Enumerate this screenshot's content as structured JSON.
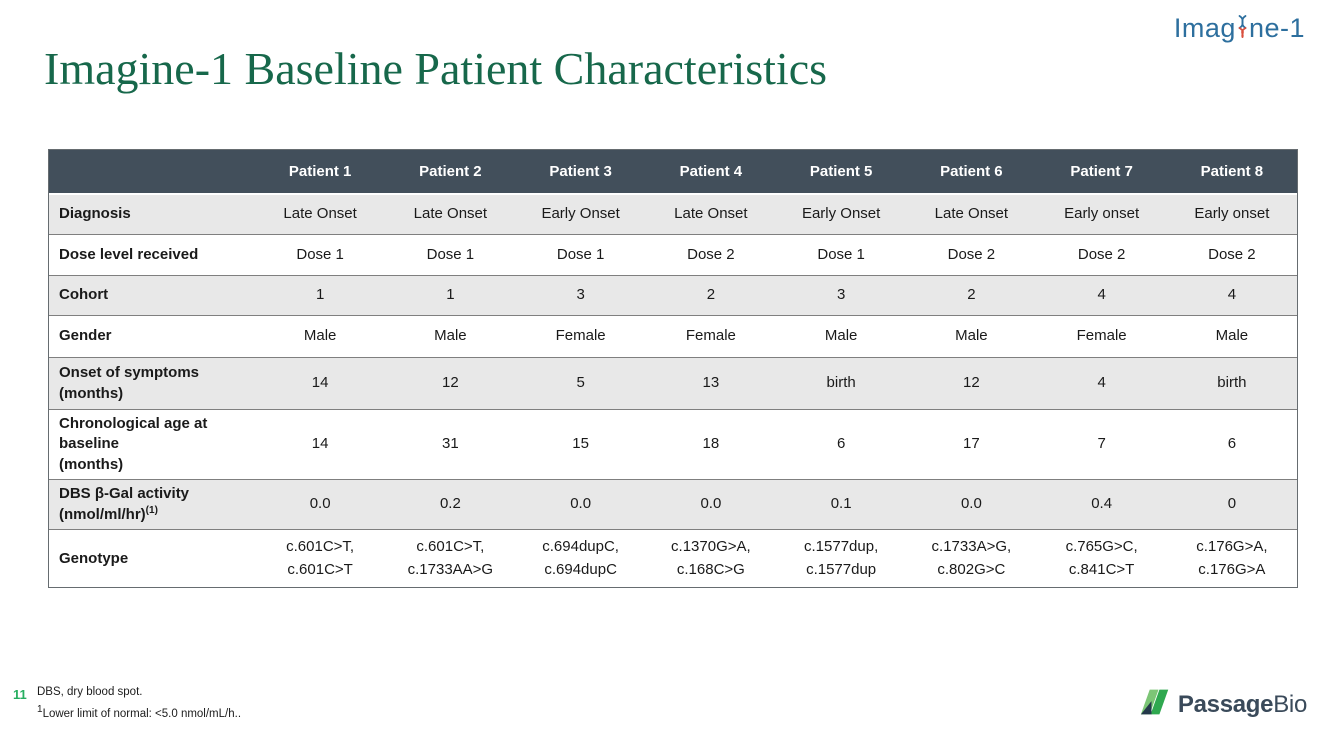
{
  "colors": {
    "title_green": "#17684B",
    "header_bg": "#424F5B",
    "row_gray": "#E8E8E8",
    "logo_blue": "#2D6F9E",
    "dna_red": "#D94F3D",
    "page_num_green": "#27AE60",
    "passage_dark": "#3A4A5A",
    "passage_green_light": "#7CC576",
    "passage_green_dark": "#2FA84F",
    "passage_navy": "#24384A"
  },
  "top_logo": {
    "prefix": "Imag",
    "suffix": "ne-1",
    "dna_icon": "dna-helix-icon"
  },
  "title": "Imagine-1 Baseline Patient Characteristics",
  "table": {
    "columns": [
      "",
      "Patient 1",
      "Patient 2",
      "Patient 3",
      "Patient 4",
      "Patient 5",
      "Patient 6",
      "Patient 7",
      "Patient 8"
    ],
    "rows": [
      {
        "label_lines": [
          "Diagnosis"
        ],
        "shaded": true,
        "values": [
          "Late Onset",
          "Late Onset",
          "Early Onset",
          "Late Onset",
          "Early Onset",
          "Late Onset",
          "Early onset",
          "Early onset"
        ]
      },
      {
        "label_lines": [
          "Dose level received"
        ],
        "shaded": false,
        "values": [
          "Dose 1",
          "Dose 1",
          "Dose 1",
          "Dose 2",
          "Dose 1",
          "Dose 2",
          "Dose 2",
          "Dose 2"
        ]
      },
      {
        "label_lines": [
          "Cohort"
        ],
        "shaded": true,
        "values": [
          "1",
          "1",
          "3",
          "2",
          "3",
          "2",
          "4",
          "4"
        ]
      },
      {
        "label_lines": [
          "Gender"
        ],
        "shaded": false,
        "values": [
          "Male",
          "Male",
          "Female",
          "Female",
          "Male",
          "Male",
          "Female",
          "Male"
        ]
      },
      {
        "label_lines": [
          "Onset of symptoms",
          "(months)"
        ],
        "shaded": true,
        "values": [
          "14",
          "12",
          "5",
          "13",
          "birth",
          "12",
          "4",
          "birth"
        ]
      },
      {
        "label_lines": [
          "Chronological age at",
          "baseline",
          "(months)"
        ],
        "shaded": false,
        "values": [
          "14",
          "31",
          "15",
          "18",
          "6",
          "17",
          "7",
          "6"
        ]
      },
      {
        "label_lines": [
          "DBS β-Gal activity",
          "(nmol/ml/hr)"
        ],
        "label_sup": "(1)",
        "shaded": true,
        "values": [
          "0.0",
          "0.2",
          "0.0",
          "0.0",
          "0.1",
          "0.0",
          "0.4",
          "0"
        ]
      },
      {
        "label_lines": [
          "Genotype"
        ],
        "shaded": false,
        "values": [
          "c.601C>T,\nc.601C>T",
          "c.601C>T,\nc.1733AA>G",
          "c.694dupC,\nc.694dupC",
          "c.1370G>A,\nc.168C>G",
          "c.1577dup,\nc.1577dup",
          "c.1733A>G,\nc.802G>C",
          "c.765G>C,\nc.841C>T",
          "c.176G>A,\nc.176G>A"
        ]
      }
    ]
  },
  "footer": {
    "slide_number": "11",
    "note1": "DBS, dry blood spot.",
    "note2_sup": "1",
    "note2": "Lower limit of normal: <5.0 nmol/mL/h.."
  },
  "bottom_logo": {
    "bold": "Passage",
    "light": "Bio"
  }
}
